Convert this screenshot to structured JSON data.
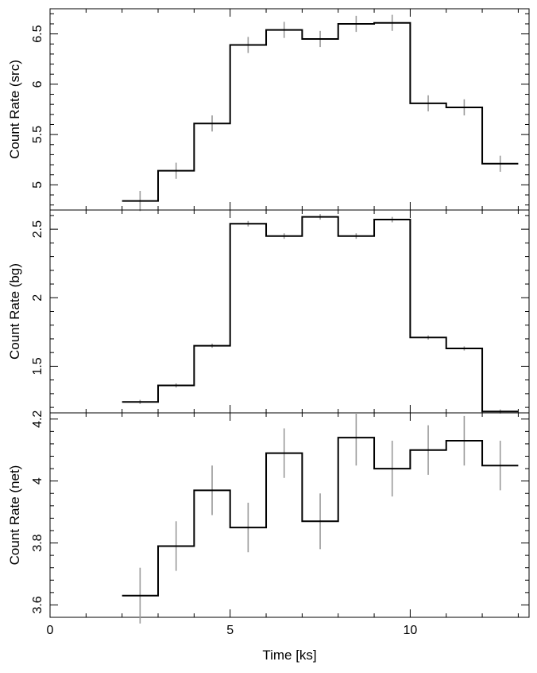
{
  "chart_data": [
    {
      "type": "line",
      "ylabel": "Count Rate (src)",
      "xlim": [
        0,
        13.3
      ],
      "ylim": [
        4.75,
        6.75
      ],
      "yticks": [
        5,
        5.5,
        6,
        6.5
      ],
      "ytick_labels": [
        "5",
        "5.5",
        "6",
        "6.5"
      ],
      "series": [
        {
          "x": [
            2.5,
            3.5,
            4.5,
            5.5,
            6.5,
            7.5,
            8.5,
            9.5,
            10.5,
            11.5,
            12.5
          ],
          "values": [
            4.84,
            5.14,
            5.61,
            6.39,
            6.54,
            6.45,
            6.6,
            6.61,
            5.81,
            5.77,
            5.21
          ],
          "errors": [
            0.1,
            0.08,
            0.08,
            0.08,
            0.08,
            0.08,
            0.08,
            0.08,
            0.08,
            0.08,
            0.08
          ]
        }
      ]
    },
    {
      "type": "line",
      "ylabel": "Count Rate (bg)",
      "xlim": [
        0,
        13.3
      ],
      "ylim": [
        1.16,
        2.64
      ],
      "yticks": [
        1.5,
        2,
        2.5
      ],
      "ytick_labels": [
        "1.5",
        "2",
        "2.5"
      ],
      "series": [
        {
          "x": [
            2.5,
            3.5,
            4.5,
            5.5,
            6.5,
            7.5,
            8.5,
            9.5,
            10.5,
            11.5,
            12.5
          ],
          "values": [
            1.24,
            1.36,
            1.65,
            2.54,
            2.45,
            2.59,
            2.45,
            2.57,
            1.71,
            1.63,
            1.17
          ],
          "errors": [
            0.015,
            0.015,
            0.015,
            0.02,
            0.02,
            0.02,
            0.02,
            0.02,
            0.015,
            0.015,
            0.015
          ]
        }
      ]
    },
    {
      "type": "line",
      "ylabel": "Count Rate (net)",
      "xlabel": "Time [ks]",
      "xlim": [
        0,
        13.3
      ],
      "ylim": [
        3.56,
        4.22
      ],
      "xticks": [
        0,
        5,
        10
      ],
      "xtick_labels": [
        "0",
        "5",
        "10"
      ],
      "yticks": [
        3.6,
        3.8,
        4,
        4.2
      ],
      "ytick_labels": [
        "3.6",
        "3.8",
        "4",
        "4.2"
      ],
      "series": [
        {
          "x": [
            2.5,
            3.5,
            4.5,
            5.5,
            6.5,
            7.5,
            8.5,
            9.5,
            10.5,
            11.5,
            12.5
          ],
          "values": [
            3.63,
            3.79,
            3.97,
            3.85,
            4.09,
            3.87,
            4.14,
            4.04,
            4.1,
            4.13,
            4.05
          ],
          "errors": [
            0.09,
            0.08,
            0.08,
            0.08,
            0.08,
            0.09,
            0.09,
            0.09,
            0.08,
            0.08,
            0.08
          ]
        }
      ]
    }
  ],
  "colors": {
    "step_line": "#000000",
    "error_bars": "#9a9a9a",
    "frame": "#000000"
  }
}
